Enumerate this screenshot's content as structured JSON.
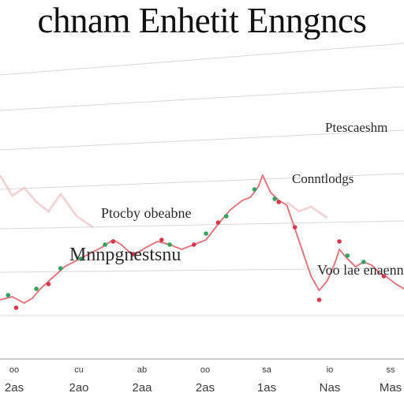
{
  "chart_data": {
    "type": "line",
    "title": "chnam Enhetit Enngncs",
    "annotations": [
      "Ptescaeshm",
      "Conntlodgs",
      "Ptocby obeabne",
      "Mnnpgnestsnu",
      "Voo lae enaenn"
    ],
    "x_tick_top": [
      "oo",
      "cu",
      "ab",
      "oo",
      "sa",
      "io",
      "ss"
    ],
    "x_tick_bottom": [
      "2as",
      "2ao",
      "2aa",
      "2as",
      "1as",
      "Nas",
      "Mas"
    ],
    "colors": {
      "line": "#e0787f",
      "shadow": "#e8b3b6",
      "up": "#33a35a",
      "down": "#d9364a",
      "grid": "#d8d8d8"
    },
    "xlim": [
      0,
      100
    ],
    "ylim": [
      0,
      100
    ],
    "grid": true,
    "series": [
      {
        "values": [
          [
            0,
            20
          ],
          [
            3,
            22
          ],
          [
            6,
            18
          ],
          [
            8,
            21
          ],
          [
            10,
            27
          ],
          [
            13,
            34
          ],
          [
            16,
            41
          ],
          [
            19,
            45
          ],
          [
            22,
            49
          ],
          [
            25,
            53
          ],
          [
            28,
            58
          ],
          [
            30,
            55
          ],
          [
            33,
            48
          ],
          [
            36,
            53
          ],
          [
            39,
            57
          ],
          [
            42,
            55
          ],
          [
            45,
            52
          ],
          [
            48,
            55
          ],
          [
            51,
            58
          ],
          [
            54,
            68
          ],
          [
            57,
            77
          ],
          [
            60,
            83
          ],
          [
            62,
            85
          ],
          [
            64,
            92
          ],
          [
            65,
            99
          ],
          [
            67,
            88
          ],
          [
            69,
            83
          ],
          [
            71,
            80
          ],
          [
            73,
            65
          ],
          [
            75,
            50
          ],
          [
            77,
            35
          ],
          [
            79,
            26
          ],
          [
            81,
            32
          ],
          [
            83,
            44
          ],
          [
            84,
            52
          ],
          [
            86,
            46
          ],
          [
            88,
            41
          ],
          [
            90,
            44
          ],
          [
            92,
            42
          ],
          [
            94,
            37
          ],
          [
            96,
            34
          ],
          [
            98,
            30
          ],
          [
            100,
            27
          ]
        ]
      }
    ],
    "ghost_series": [
      {
        "values": [
          [
            0,
            99
          ],
          [
            3,
            86
          ],
          [
            6,
            91
          ],
          [
            9,
            82
          ],
          [
            12,
            76
          ],
          [
            15,
            87
          ],
          [
            19,
            73
          ],
          [
            23,
            66
          ]
        ]
      },
      {
        "values": [
          [
            71,
            82
          ],
          [
            74,
            76
          ],
          [
            77,
            79
          ],
          [
            81,
            72
          ]
        ]
      }
    ],
    "up_marks": [
      [
        2,
        23
      ],
      [
        9,
        27
      ],
      [
        15,
        40
      ],
      [
        20,
        46
      ],
      [
        26,
        55
      ],
      [
        42,
        55
      ],
      [
        51,
        62
      ],
      [
        56,
        73
      ],
      [
        63,
        90
      ],
      [
        68,
        84
      ],
      [
        86,
        48
      ],
      [
        90,
        44
      ]
    ],
    "down_marks": [
      [
        4,
        15
      ],
      [
        12,
        30
      ],
      [
        28,
        57
      ],
      [
        33,
        49
      ],
      [
        40,
        58
      ],
      [
        48,
        55
      ],
      [
        54,
        69
      ],
      [
        69,
        82
      ],
      [
        73,
        66
      ],
      [
        79,
        20
      ],
      [
        84,
        57
      ],
      [
        95,
        35
      ]
    ]
  }
}
